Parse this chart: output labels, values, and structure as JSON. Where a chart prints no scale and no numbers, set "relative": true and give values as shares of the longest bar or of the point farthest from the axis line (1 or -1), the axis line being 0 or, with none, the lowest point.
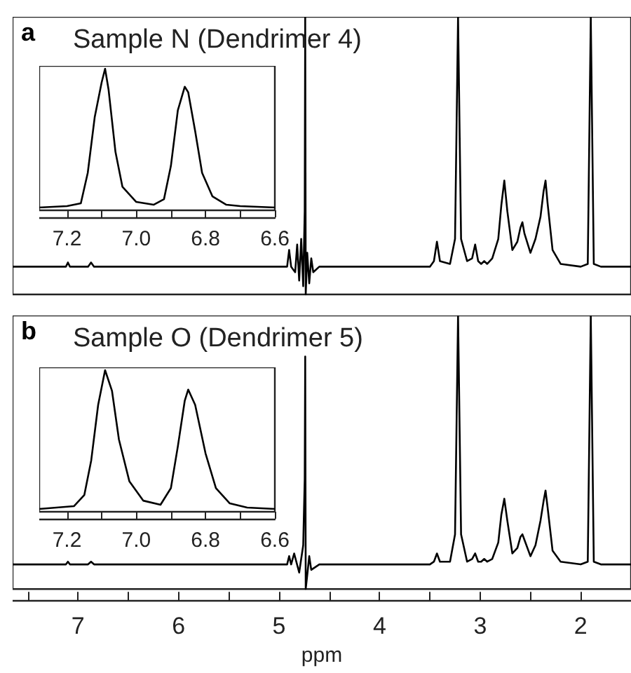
{
  "chart_data": [
    {
      "type": "line",
      "title": "Sample N (Dendrimer 4)",
      "annotations": [
        "a"
      ],
      "relative": true,
      "tick_labels": false,
      "marker": "none",
      "xlim": [
        7.65,
        1.5
      ],
      "x": [
        7.65,
        7.2,
        7.12,
        7.1,
        7.08,
        6.9,
        6.87,
        6.84,
        5.0,
        4.92,
        4.9,
        4.88,
        4.84,
        4.82,
        4.8,
        4.78,
        4.76,
        4.745,
        4.74,
        4.735,
        4.72,
        4.7,
        4.68,
        4.66,
        4.6,
        3.5,
        3.46,
        3.43,
        3.4,
        3.3,
        3.25,
        3.22,
        3.19,
        3.13,
        3.08,
        3.05,
        3.02,
        2.99,
        2.96,
        2.93,
        2.88,
        2.82,
        2.79,
        2.76,
        2.73,
        2.68,
        2.63,
        2.6,
        2.58,
        2.56,
        2.5,
        2.45,
        2.4,
        2.37,
        2.35,
        2.33,
        2.28,
        2.2,
        2.0,
        1.93,
        1.9,
        1.87,
        1.8,
        1.5
      ],
      "series": [
        {
          "color": "#000000",
          "values": [
            0.1,
            0.1,
            0.1,
            0.115,
            0.1,
            0.1,
            0.115,
            0.1,
            0.1,
            0.1,
            0.16,
            0.1,
            0.08,
            0.18,
            0.05,
            0.2,
            0.03,
            0.3,
            1,
            0,
            0.15,
            0.04,
            0.13,
            0.08,
            0.1,
            0.1,
            0.12,
            0.19,
            0.12,
            0.11,
            0.2,
            1,
            0.2,
            0.12,
            0.13,
            0.18,
            0.12,
            0.11,
            0.12,
            0.11,
            0.13,
            0.2,
            0.32,
            0.41,
            0.3,
            0.16,
            0.19,
            0.24,
            0.26,
            0.22,
            0.15,
            0.2,
            0.28,
            0.37,
            0.41,
            0.33,
            0.16,
            0.11,
            0.1,
            0.11,
            1,
            0.11,
            0.1,
            0.1
          ]
        }
      ]
    },
    {
      "type": "line",
      "relative": true,
      "tick_labels": "x",
      "marker": "none",
      "xlim": [
        7.28,
        6.6
      ],
      "xticks": [
        {
          "value": 7.2,
          "label": "7.2"
        },
        {
          "value": 7.1,
          "label": null
        },
        {
          "value": 7.0,
          "label": "7.0"
        },
        {
          "value": 6.9,
          "label": null
        },
        {
          "value": 6.8,
          "label": "6.8"
        },
        {
          "value": 6.7,
          "label": null
        },
        {
          "value": 6.6,
          "label": "6.6"
        }
      ],
      "x": [
        7.28,
        7.2,
        7.16,
        7.14,
        7.12,
        7.1,
        7.09,
        7.08,
        7.06,
        7.04,
        7.0,
        6.95,
        6.92,
        6.9,
        6.88,
        6.86,
        6.85,
        6.83,
        6.81,
        6.78,
        6.74,
        6.7,
        6.6
      ],
      "series": [
        {
          "color": "#000000",
          "values": [
            0,
            0.01,
            0.03,
            0.25,
            0.65,
            0.9,
            1,
            0.85,
            0.4,
            0.15,
            0.04,
            0.02,
            0.06,
            0.3,
            0.7,
            0.87,
            0.83,
            0.55,
            0.25,
            0.08,
            0.02,
            0.01,
            0
          ]
        }
      ]
    },
    {
      "type": "line",
      "title": "Sample O (Dendrimer 5)",
      "annotations": [
        "b"
      ],
      "relative": true,
      "tick_labels": "x",
      "marker": "none",
      "xlabel": "ppm",
      "xlim": [
        7.65,
        1.5
      ],
      "xticks": [
        {
          "value": 7.5,
          "label": null
        },
        7,
        {
          "value": 6.5,
          "label": null
        },
        6,
        {
          "value": 5.5,
          "label": null
        },
        5,
        {
          "value": 4.5,
          "label": null
        },
        4,
        {
          "value": 3.5,
          "label": null
        },
        3,
        {
          "value": 2.5,
          "label": null
        },
        2
      ],
      "x": [
        7.65,
        7.2,
        7.12,
        7.1,
        7.08,
        6.9,
        6.87,
        6.84,
        5.0,
        4.92,
        4.9,
        4.88,
        4.85,
        4.8,
        4.76,
        4.745,
        4.74,
        4.735,
        4.72,
        4.7,
        4.68,
        4.6,
        3.5,
        3.46,
        3.43,
        3.4,
        3.3,
        3.25,
        3.22,
        3.19,
        3.13,
        3.08,
        3.05,
        3.02,
        2.99,
        2.96,
        2.93,
        2.88,
        2.82,
        2.79,
        2.76,
        2.73,
        2.68,
        2.63,
        2.6,
        2.58,
        2.56,
        2.5,
        2.45,
        2.4,
        2.37,
        2.35,
        2.33,
        2.28,
        2.2,
        2.0,
        1.93,
        1.9,
        1.87,
        1.8,
        1.5
      ],
      "series": [
        {
          "color": "#000000",
          "values": [
            0.09,
            0.09,
            0.09,
            0.1,
            0.09,
            0.09,
            0.1,
            0.09,
            0.09,
            0.09,
            0.12,
            0.09,
            0.13,
            0.06,
            0.16,
            0.4,
            0.85,
            0,
            0.05,
            0.12,
            0.07,
            0.09,
            0.09,
            0.1,
            0.13,
            0.1,
            0.1,
            0.2,
            1,
            0.2,
            0.1,
            0.11,
            0.13,
            0.1,
            0.1,
            0.11,
            0.1,
            0.11,
            0.17,
            0.27,
            0.33,
            0.25,
            0.13,
            0.15,
            0.19,
            0.2,
            0.18,
            0.12,
            0.16,
            0.25,
            0.32,
            0.36,
            0.3,
            0.14,
            0.1,
            0.09,
            0.1,
            1,
            0.1,
            0.09,
            0.09
          ]
        }
      ]
    },
    {
      "type": "line",
      "relative": true,
      "tick_labels": "x",
      "marker": "none",
      "xlim": [
        7.28,
        6.6
      ],
      "xticks": [
        {
          "value": 7.2,
          "label": "7.2"
        },
        {
          "value": 7.1,
          "label": null
        },
        {
          "value": 7.0,
          "label": "7.0"
        },
        {
          "value": 6.9,
          "label": null
        },
        {
          "value": 6.8,
          "label": "6.8"
        },
        {
          "value": 6.7,
          "label": null
        },
        {
          "value": 6.6,
          "label": "6.6"
        }
      ],
      "x": [
        7.28,
        7.18,
        7.15,
        7.13,
        7.11,
        7.09,
        7.07,
        7.05,
        7.02,
        6.98,
        6.93,
        6.9,
        6.88,
        6.86,
        6.85,
        6.83,
        6.8,
        6.77,
        6.73,
        6.68,
        6.6
      ],
      "series": [
        {
          "color": "#000000",
          "values": [
            0,
            0.02,
            0.1,
            0.35,
            0.75,
            1,
            0.85,
            0.5,
            0.2,
            0.06,
            0.03,
            0.15,
            0.45,
            0.78,
            0.86,
            0.75,
            0.4,
            0.15,
            0.04,
            0.01,
            0
          ]
        }
      ]
    }
  ]
}
